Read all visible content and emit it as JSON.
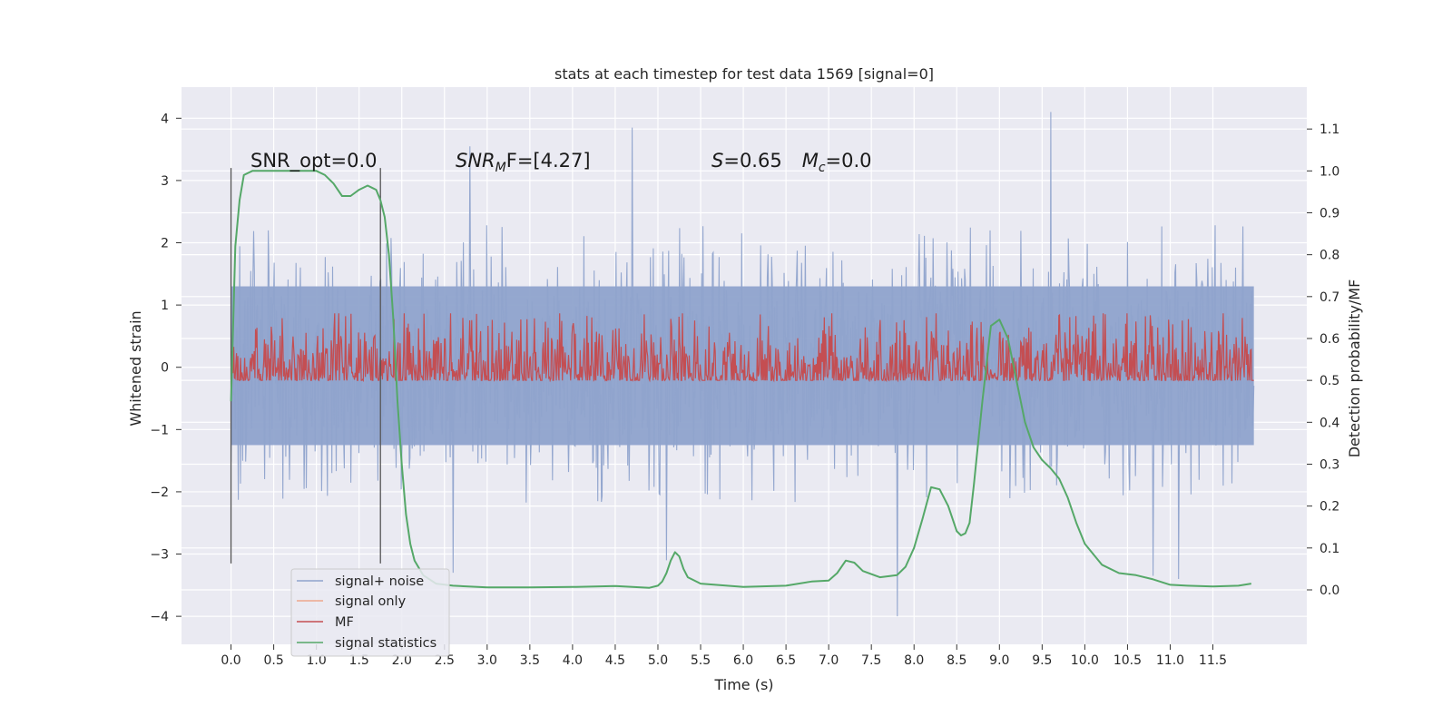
{
  "chart_data": {
    "type": "line",
    "title": "stats at each timestep for test data 1569 [signal=0]",
    "xlabel": "Time (s)",
    "ylabel_left": "Whitened strain",
    "ylabel_right": "Detection probability/MF",
    "xlim": [
      -0.58,
      12.6
    ],
    "ylim_left": [
      -4.45,
      4.5
    ],
    "ylim_right": [
      -0.13,
      1.2
    ],
    "xticks": [
      "0.0",
      "0.5",
      "1.0",
      "1.5",
      "2.0",
      "2.5",
      "3.0",
      "3.5",
      "4.0",
      "4.5",
      "5.0",
      "5.5",
      "6.0",
      "6.5",
      "7.0",
      "7.5",
      "8.0",
      "8.5",
      "9.0",
      "9.5",
      "10.0",
      "10.5",
      "11.0",
      "11.5"
    ],
    "xtick_values": [
      0,
      0.5,
      1,
      1.5,
      2,
      2.5,
      3,
      3.5,
      4,
      4.5,
      5,
      5.5,
      6,
      6.5,
      7,
      7.5,
      8,
      8.5,
      9,
      9.5,
      10,
      10.5,
      11,
      11.5
    ],
    "yticks_left": [
      "4",
      "3",
      "2",
      "1",
      "0",
      "−1",
      "−2",
      "−3",
      "−4"
    ],
    "ytick_values_left": [
      4,
      3,
      2,
      1,
      0,
      -1,
      -2,
      -3,
      -4
    ],
    "yticks_right": [
      "1.1",
      "1.0",
      "0.9",
      "0.8",
      "0.7",
      "0.6",
      "0.5",
      "0.4",
      "0.3",
      "0.2",
      "0.1",
      "0.0"
    ],
    "ytick_values_right": [
      1.1,
      1.0,
      0.9,
      0.8,
      0.7,
      0.6,
      0.5,
      0.4,
      0.3,
      0.2,
      0.1,
      0.0
    ],
    "grid": true,
    "legend_position": "lower-left",
    "annotations": {
      "snr_opt": "SNR_opt=0.0",
      "snr_mf_base": "SNR",
      "snr_mf_sub": "M",
      "snr_mf_tail": "F=[4.27]",
      "s_sym": "S",
      "s_val": "=0.65",
      "mc_sym": "M",
      "mc_sub": "c",
      "mc_val": "=0.0"
    },
    "vertical_lines_x": [
      0.0,
      1.75
    ],
    "vertical_lines_range": [
      -3.15,
      3.2
    ],
    "series": [
      {
        "name": "signal+ noise",
        "axis": "left",
        "color": "#8fa3cc",
        "kind": "noise",
        "x_range": [
          0,
          11.98
        ],
        "band_upper": 1.3,
        "band_lower": -1.25,
        "typical_max": 2.3,
        "typical_min": -2.2,
        "peaks": [
          [
            4.7,
            3.85
          ],
          [
            9.6,
            4.1
          ],
          [
            2.8,
            3.55
          ],
          [
            5.1,
            -3.1
          ],
          [
            7.8,
            -4.0
          ],
          [
            10.8,
            -3.35
          ],
          [
            11.1,
            -3.4
          ],
          [
            2.6,
            -3.3
          ]
        ]
      },
      {
        "name": "signal only",
        "axis": "left",
        "color": "#eea88c",
        "kind": "flat",
        "values": []
      },
      {
        "name": "MF",
        "axis": "right",
        "color": "#c44e52",
        "kind": "noise",
        "x_range": [
          0,
          11.98
        ],
        "base": 0.52,
        "amplitude": 0.06,
        "max": 0.66,
        "min": 0.5
      },
      {
        "name": "signal statistics",
        "axis": "right",
        "color": "#55a868",
        "kind": "curve",
        "x": [
          0.0,
          0.05,
          0.1,
          0.15,
          0.25,
          0.5,
          0.8,
          1.0,
          1.1,
          1.2,
          1.3,
          1.4,
          1.5,
          1.6,
          1.65,
          1.7,
          1.75,
          1.8,
          1.85,
          1.9,
          1.95,
          2.0,
          2.05,
          2.1,
          2.15,
          2.25,
          2.4,
          2.6,
          3.0,
          3.5,
          4.0,
          4.5,
          4.9,
          5.0,
          5.05,
          5.1,
          5.15,
          5.2,
          5.25,
          5.3,
          5.35,
          5.5,
          6.0,
          6.5,
          6.8,
          7.0,
          7.1,
          7.2,
          7.3,
          7.4,
          7.6,
          7.8,
          7.9,
          8.0,
          8.1,
          8.2,
          8.3,
          8.4,
          8.5,
          8.55,
          8.6,
          8.65,
          8.7,
          8.8,
          8.9,
          9.0,
          9.1,
          9.2,
          9.3,
          9.4,
          9.5,
          9.6,
          9.7,
          9.8,
          9.9,
          10.0,
          10.2,
          10.4,
          10.6,
          10.8,
          11.0,
          11.2,
          11.5,
          11.8,
          11.95
        ],
        "values": [
          0.45,
          0.82,
          0.93,
          0.99,
          1.0,
          1.0,
          1.0,
          1.0,
          0.99,
          0.97,
          0.94,
          0.94,
          0.955,
          0.965,
          0.96,
          0.955,
          0.93,
          0.89,
          0.8,
          0.65,
          0.45,
          0.3,
          0.18,
          0.11,
          0.07,
          0.035,
          0.015,
          0.01,
          0.006,
          0.006,
          0.007,
          0.009,
          0.005,
          0.01,
          0.02,
          0.04,
          0.07,
          0.09,
          0.08,
          0.05,
          0.03,
          0.015,
          0.007,
          0.01,
          0.02,
          0.022,
          0.04,
          0.07,
          0.065,
          0.045,
          0.03,
          0.035,
          0.055,
          0.1,
          0.17,
          0.245,
          0.24,
          0.2,
          0.14,
          0.13,
          0.135,
          0.16,
          0.25,
          0.45,
          0.63,
          0.645,
          0.6,
          0.5,
          0.4,
          0.34,
          0.31,
          0.29,
          0.265,
          0.22,
          0.16,
          0.11,
          0.06,
          0.04,
          0.035,
          0.025,
          0.012,
          0.01,
          0.008,
          0.01,
          0.015
        ]
      }
    ]
  }
}
